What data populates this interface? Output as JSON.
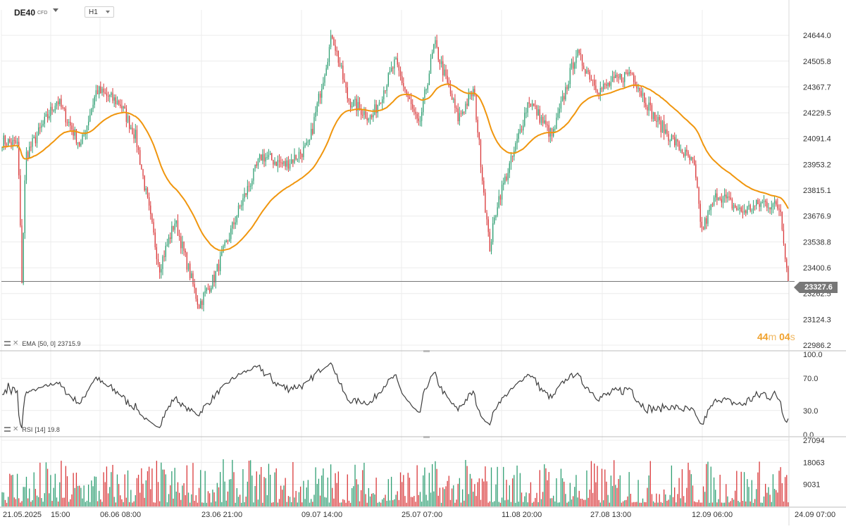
{
  "header": {
    "symbol": "DE40",
    "symbol_type": "CFD",
    "timeframe": "H1"
  },
  "colors": {
    "up": "#2e9e72",
    "down": "#d9383a",
    "ema": "#f0960e",
    "rsi": "#3d3d3d",
    "grid": "#ececec",
    "last_price_line": "#777777"
  },
  "indicators": {
    "ema_label": "EMA",
    "ema_params": "[50, 0]",
    "ema_value": "23715.9",
    "rsi_label": "RSI",
    "rsi_params": "[14]",
    "rsi_value": "19.8"
  },
  "countdown": {
    "minutes": "44",
    "minutes_unit": "m",
    "seconds": "04",
    "seconds_unit": "s"
  },
  "last_price": "23327.6",
  "chart_data": {
    "type": "candlestick",
    "price_axis_ticks": [
      24644.0,
      24505.8,
      24367.7,
      24229.5,
      24091.4,
      23953.2,
      23815.1,
      23676.9,
      23538.8,
      23400.6,
      23262.5,
      23124.3,
      22986.2
    ],
    "price_axis_labels": [
      "24644.0",
      "24505.8",
      "24367.7",
      "24229.5",
      "24091.4",
      "23953.2",
      "23815.1",
      "23676.9",
      "23538.8",
      "23400.6",
      "23262.5",
      "23124.3",
      "22986.2"
    ],
    "price_range": [
      22960,
      24780
    ],
    "close_path": [
      {
        "t": 0,
        "v": 24080
      },
      {
        "t": 0.02,
        "v": 24060
      },
      {
        "t": 0.025,
        "v": 23330
      },
      {
        "t": 0.03,
        "v": 24000
      },
      {
        "t": 0.05,
        "v": 24150
      },
      {
        "t": 0.07,
        "v": 24300
      },
      {
        "t": 0.1,
        "v": 24050
      },
      {
        "t": 0.12,
        "v": 24350
      },
      {
        "t": 0.15,
        "v": 24280
      },
      {
        "t": 0.17,
        "v": 24100
      },
      {
        "t": 0.2,
        "v": 23400
      },
      {
        "t": 0.22,
        "v": 23650
      },
      {
        "t": 0.25,
        "v": 23200
      },
      {
        "t": 0.27,
        "v": 23350
      },
      {
        "t": 0.3,
        "v": 23700
      },
      {
        "t": 0.33,
        "v": 24000
      },
      {
        "t": 0.36,
        "v": 23950
      },
      {
        "t": 0.39,
        "v": 24050
      },
      {
        "t": 0.42,
        "v": 24650
      },
      {
        "t": 0.44,
        "v": 24300
      },
      {
        "t": 0.47,
        "v": 24200
      },
      {
        "t": 0.5,
        "v": 24500
      },
      {
        "t": 0.53,
        "v": 24150
      },
      {
        "t": 0.55,
        "v": 24600
      },
      {
        "t": 0.58,
        "v": 24200
      },
      {
        "t": 0.6,
        "v": 24350
      },
      {
        "t": 0.62,
        "v": 23500
      },
      {
        "t": 0.63,
        "v": 23750
      },
      {
        "t": 0.65,
        "v": 24000
      },
      {
        "t": 0.67,
        "v": 24300
      },
      {
        "t": 0.7,
        "v": 24100
      },
      {
        "t": 0.73,
        "v": 24550
      },
      {
        "t": 0.76,
        "v": 24350
      },
      {
        "t": 0.8,
        "v": 24450
      },
      {
        "t": 0.83,
        "v": 24200
      },
      {
        "t": 0.86,
        "v": 24050
      },
      {
        "t": 0.88,
        "v": 23950
      },
      {
        "t": 0.89,
        "v": 23600
      },
      {
        "t": 0.91,
        "v": 23800
      },
      {
        "t": 0.94,
        "v": 23700
      },
      {
        "t": 0.97,
        "v": 23750
      },
      {
        "t": 0.99,
        "v": 23720
      },
      {
        "t": 1.0,
        "v": 23327.6
      }
    ],
    "ema_label_value": 23715.9,
    "ema_period": 50,
    "rsi_axis_ticks": [
      100.0,
      70.0,
      30.0,
      0.0
    ],
    "rsi_axis_labels": [
      "100.0",
      "70.0",
      "30.0",
      "0.0"
    ],
    "rsi_range": [
      0,
      100
    ],
    "volume_axis_ticks": [
      27094,
      18063,
      9031
    ],
    "volume_axis_labels": [
      "27094",
      "18063",
      "9031"
    ],
    "volume_range": [
      0,
      27094
    ],
    "x_tick_labels": [
      "21.05.2025",
      "15:00",
      "06.06 08:00",
      "23.06 21:00",
      "09.07 14:00",
      "25.07 07:00",
      "11.08 20:00",
      "27.08 13:00",
      "12.09 06:00",
      "24.09 07:00"
    ],
    "grid": true
  }
}
